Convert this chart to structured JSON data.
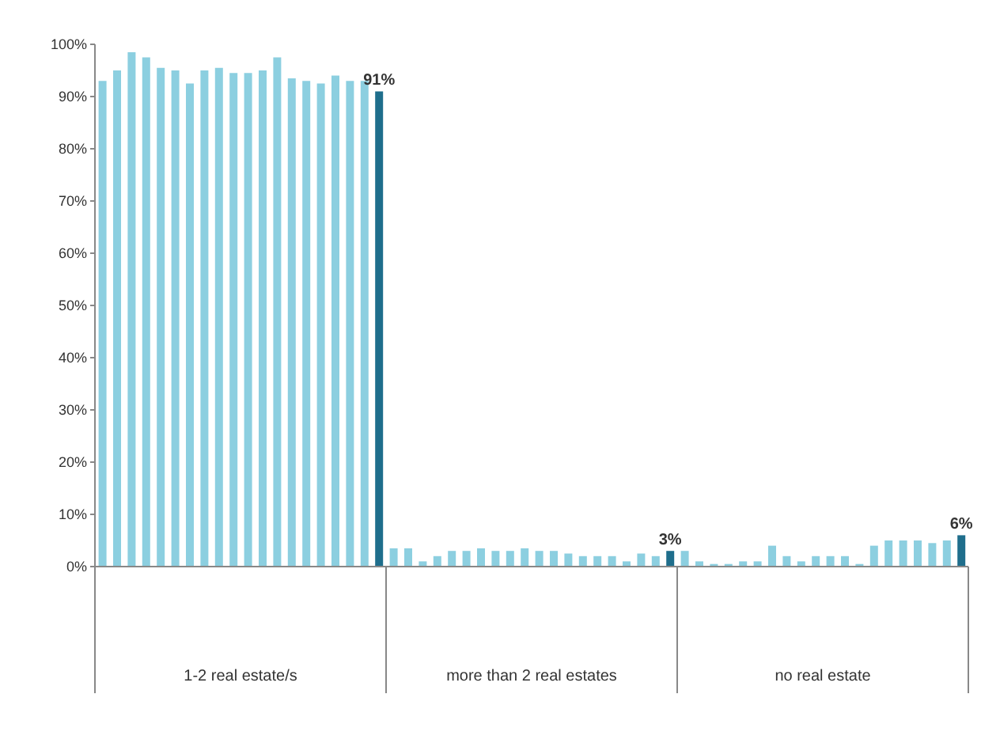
{
  "chart_data": {
    "type": "bar",
    "categories": [
      null,
      null,
      null,
      null,
      null,
      null,
      null,
      null,
      null,
      null,
      null,
      null,
      null,
      null,
      null,
      null,
      null,
      null,
      null,
      null,
      null,
      null,
      null,
      null,
      null,
      null,
      null,
      null,
      null,
      null,
      null,
      null,
      null,
      null,
      null,
      null,
      null,
      null,
      null,
      null,
      null,
      null,
      null,
      null,
      null,
      null,
      null,
      null,
      null,
      null,
      null,
      null,
      null,
      null,
      null,
      null,
      null,
      null,
      null,
      null
    ],
    "values": [
      93,
      95,
      98.5,
      97.5,
      95.5,
      95,
      92.5,
      95,
      95.5,
      94.5,
      94.5,
      95,
      97.5,
      93.5,
      93,
      92.5,
      94,
      93,
      93,
      91,
      3.5,
      3.5,
      1,
      2,
      3,
      3,
      3.5,
      3,
      3,
      3.5,
      3,
      3,
      2.5,
      2,
      2,
      2,
      1,
      2.5,
      2,
      3,
      3,
      1,
      0.5,
      0.5,
      1,
      1,
      4,
      2,
      1,
      2,
      2,
      2,
      0.5,
      4,
      5,
      5,
      5,
      4.5,
      5,
      6
    ],
    "colors": [
      "#8ccfe0",
      "#8ccfe0",
      "#8ccfe0",
      "#8ccfe0",
      "#8ccfe0",
      "#8ccfe0",
      "#8ccfe0",
      "#8ccfe0",
      "#8ccfe0",
      "#8ccfe0",
      "#8ccfe0",
      "#8ccfe0",
      "#8ccfe0",
      "#8ccfe0",
      "#8ccfe0",
      "#8ccfe0",
      "#8ccfe0",
      "#8ccfe0",
      "#8ccfe0",
      "#1f6e8c",
      "#8ccfe0",
      "#8ccfe0",
      "#8ccfe0",
      "#8ccfe0",
      "#8ccfe0",
      "#8ccfe0",
      "#8ccfe0",
      "#8ccfe0",
      "#8ccfe0",
      "#8ccfe0",
      "#8ccfe0",
      "#8ccfe0",
      "#8ccfe0",
      "#8ccfe0",
      "#8ccfe0",
      "#8ccfe0",
      "#8ccfe0",
      "#8ccfe0",
      "#8ccfe0",
      "#1f6e8c",
      "#8ccfe0",
      "#8ccfe0",
      "#8ccfe0",
      "#8ccfe0",
      "#8ccfe0",
      "#8ccfe0",
      "#8ccfe0",
      "#8ccfe0",
      "#8ccfe0",
      "#8ccfe0",
      "#8ccfe0",
      "#8ccfe0",
      "#8ccfe0",
      "#8ccfe0",
      "#8ccfe0",
      "#8ccfe0",
      "#8ccfe0",
      "#8ccfe0",
      "#8ccfe0",
      "#1f6e8c"
    ],
    "value_labels": [
      null,
      null,
      null,
      null,
      null,
      null,
      null,
      null,
      null,
      null,
      null,
      null,
      null,
      null,
      null,
      null,
      null,
      null,
      null,
      "91%",
      null,
      null,
      null,
      null,
      null,
      null,
      null,
      null,
      null,
      null,
      null,
      null,
      null,
      null,
      null,
      null,
      null,
      null,
      null,
      "3%",
      null,
      null,
      null,
      null,
      null,
      null,
      null,
      null,
      null,
      null,
      null,
      null,
      null,
      null,
      null,
      null,
      null,
      null,
      null,
      "6%"
    ],
    "ylim": [
      0,
      100
    ],
    "yticks": [
      {
        "value": 0,
        "label": "0%"
      },
      {
        "value": 10,
        "label": "10%"
      },
      {
        "value": 20,
        "label": "20%"
      },
      {
        "value": 30,
        "label": "30%"
      },
      {
        "value": 40,
        "label": "40%"
      },
      {
        "value": 50,
        "label": "50%"
      },
      {
        "value": 60,
        "label": "60%"
      },
      {
        "value": 70,
        "label": "70%"
      },
      {
        "value": 80,
        "label": "80%"
      },
      {
        "value": 90,
        "label": "90%"
      },
      {
        "value": 100,
        "label": "100%"
      }
    ],
    "annotations": [
      "1-2 real estate/s",
      "more than 2 real estates",
      "no real estate"
    ],
    "grid": false,
    "legend": false
  }
}
